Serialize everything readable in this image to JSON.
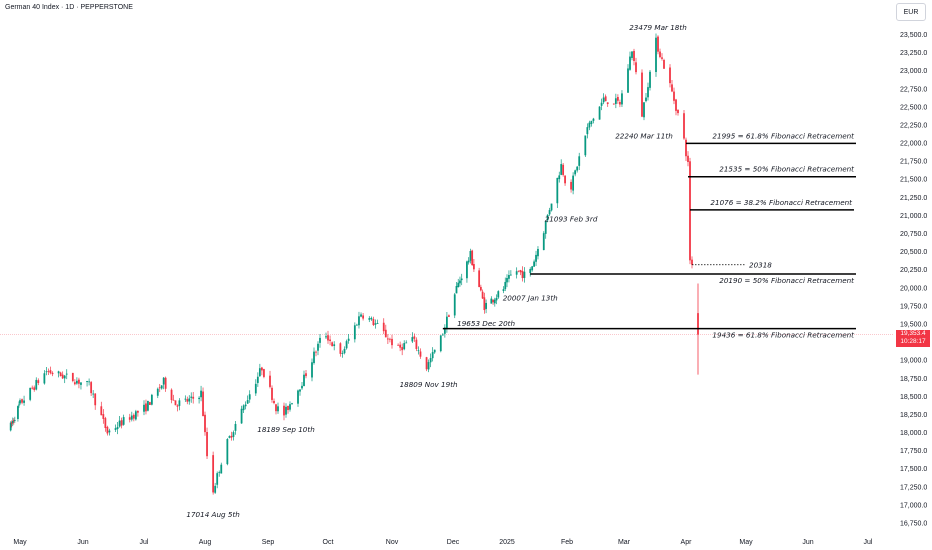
{
  "header": {
    "title": "German 40 Index · 1D · PEPPERSTONE",
    "currency": "EUR"
  },
  "price_label": {
    "value": "19,353.4",
    "time": "10:28:17"
  },
  "colors": {
    "up": "#089981",
    "down": "#f23645",
    "line": "#000000"
  },
  "chart_data": {
    "type": "candlestick",
    "ylim": [
      16750,
      23700
    ],
    "y_ticks": [
      "23,500.0",
      "23,250.0",
      "23,000.0",
      "22,750.0",
      "22,500.0",
      "22,250.0",
      "22,000.0",
      "21,750.0",
      "21,500.0",
      "21,250.0",
      "21,000.0",
      "20,750.0",
      "20,500.0",
      "20,250.0",
      "20,000.0",
      "19,750.0",
      "19,500.0",
      "19,250.0",
      "19,000.0",
      "18,750.0",
      "18,500.0",
      "18,250.0",
      "18,000.0",
      "17,750.0",
      "17,500.0",
      "17,250.0",
      "17,000.0",
      "16,750.0"
    ],
    "x_ticks": [
      "May",
      "Jun",
      "Jul",
      "Aug",
      "Sep",
      "Oct",
      "Nov",
      "Dec",
      "2025",
      "Feb",
      "Mar",
      "Apr",
      "May",
      "Jun",
      "Jul"
    ],
    "current_price": 19353.4,
    "trend_points": [
      {
        "date": "2024-04-22",
        "v": 18050
      },
      {
        "date": "2024-05-15",
        "v": 18850
      },
      {
        "date": "2024-05-27",
        "v": 18750
      },
      {
        "date": "2024-06-05",
        "v": 18650
      },
      {
        "date": "2024-06-14",
        "v": 18000
      },
      {
        "date": "2024-06-24",
        "v": 18200
      },
      {
        "date": "2024-07-03",
        "v": 18350
      },
      {
        "date": "2024-07-12",
        "v": 18700
      },
      {
        "date": "2024-07-18",
        "v": 18400
      },
      {
        "date": "2024-07-26",
        "v": 18450
      },
      {
        "date": "2024-07-31",
        "v": 18550
      },
      {
        "date": "2024-08-05",
        "v": 17100
      },
      {
        "date": "2024-08-12",
        "v": 17800
      },
      {
        "date": "2024-08-20",
        "v": 18300
      },
      {
        "date": "2024-08-30",
        "v": 18900
      },
      {
        "date": "2024-09-06",
        "v": 18350
      },
      {
        "date": "2024-09-10",
        "v": 18250
      },
      {
        "date": "2024-09-20",
        "v": 18750
      },
      {
        "date": "2024-09-30",
        "v": 19400
      },
      {
        "date": "2024-10-08",
        "v": 19050
      },
      {
        "date": "2024-10-18",
        "v": 19650
      },
      {
        "date": "2024-10-25",
        "v": 19500
      },
      {
        "date": "2024-11-05",
        "v": 19150
      },
      {
        "date": "2024-11-12",
        "v": 19300
      },
      {
        "date": "2024-11-19",
        "v": 18900
      },
      {
        "date": "2024-11-26",
        "v": 19300
      },
      {
        "date": "2024-12-04",
        "v": 20000
      },
      {
        "date": "2024-12-12",
        "v": 20450
      },
      {
        "date": "2024-12-20",
        "v": 19750
      },
      {
        "date": "2024-12-30",
        "v": 19950
      },
      {
        "date": "2025-01-06",
        "v": 20250
      },
      {
        "date": "2025-01-13",
        "v": 20150
      },
      {
        "date": "2025-01-20",
        "v": 20700
      },
      {
        "date": "2025-01-30",
        "v": 21700
      },
      {
        "date": "2025-02-03",
        "v": 21300
      },
      {
        "date": "2025-02-12",
        "v": 22200
      },
      {
        "date": "2025-02-20",
        "v": 22600
      },
      {
        "date": "2025-02-28",
        "v": 22550
      },
      {
        "date": "2025-03-06",
        "v": 23300
      },
      {
        "date": "2025-03-11",
        "v": 22400
      },
      {
        "date": "2025-03-18",
        "v": 23400
      },
      {
        "date": "2025-03-24",
        "v": 22900
      },
      {
        "date": "2025-03-31",
        "v": 22200
      },
      {
        "date": "2025-04-03",
        "v": 21700
      },
      {
        "date": "2025-04-04",
        "v": 20400
      },
      {
        "date": "2025-04-07",
        "v": 19353
      }
    ],
    "annotations": [
      {
        "text": "23479 Mar 18th",
        "date": "2025-03-18",
        "v": 23479,
        "pos": "above"
      },
      {
        "text": "22240 Mar 11th",
        "date": "2025-03-11",
        "v": 22240,
        "pos": "below"
      },
      {
        "text": "21093 Feb 3rd",
        "date": "2025-02-03",
        "v": 21093,
        "pos": "below"
      },
      {
        "text": "20007 Jan 13th",
        "date": "2025-01-13",
        "v": 20007,
        "pos": "below"
      },
      {
        "text": "19653 Dec 20th",
        "date": "2024-12-20",
        "v": 19653,
        "pos": "below"
      },
      {
        "text": "18809 Nov 19th",
        "date": "2024-11-19",
        "v": 18809,
        "pos": "below"
      },
      {
        "text": "18189 Sep 10th",
        "date": "2024-09-10",
        "v": 18189,
        "pos": "below"
      },
      {
        "text": "17014 Aug 5th",
        "date": "2024-08-05",
        "v": 17014,
        "pos": "below"
      }
    ],
    "levels": [
      {
        "text": "21995 = 61.8% Fibonacci Retracement",
        "v": 21995,
        "from": "2025-04-01",
        "to": "2025-06-25"
      },
      {
        "text": "21535 = 50% Fibonacci Retracement",
        "v": 21535,
        "from": "2025-04-02",
        "to": "2025-06-25"
      },
      {
        "text": "21076 = 38.2% Fibonacci Retracement",
        "v": 21076,
        "from": "2025-04-03",
        "to": "2025-06-24"
      },
      {
        "text": "20318",
        "v": 20318,
        "from": "2025-04-04",
        "to": "2025-05-01",
        "dashed": true
      },
      {
        "text": "20190 = 50% Fibonacci Retracement",
        "v": 20190,
        "from": "2025-01-13",
        "to": "2025-06-25"
      },
      {
        "text": "19436 = 61.8% Fibonacci Retracement",
        "v": 19436,
        "from": "2024-11-26",
        "to": "2025-06-25"
      }
    ]
  }
}
